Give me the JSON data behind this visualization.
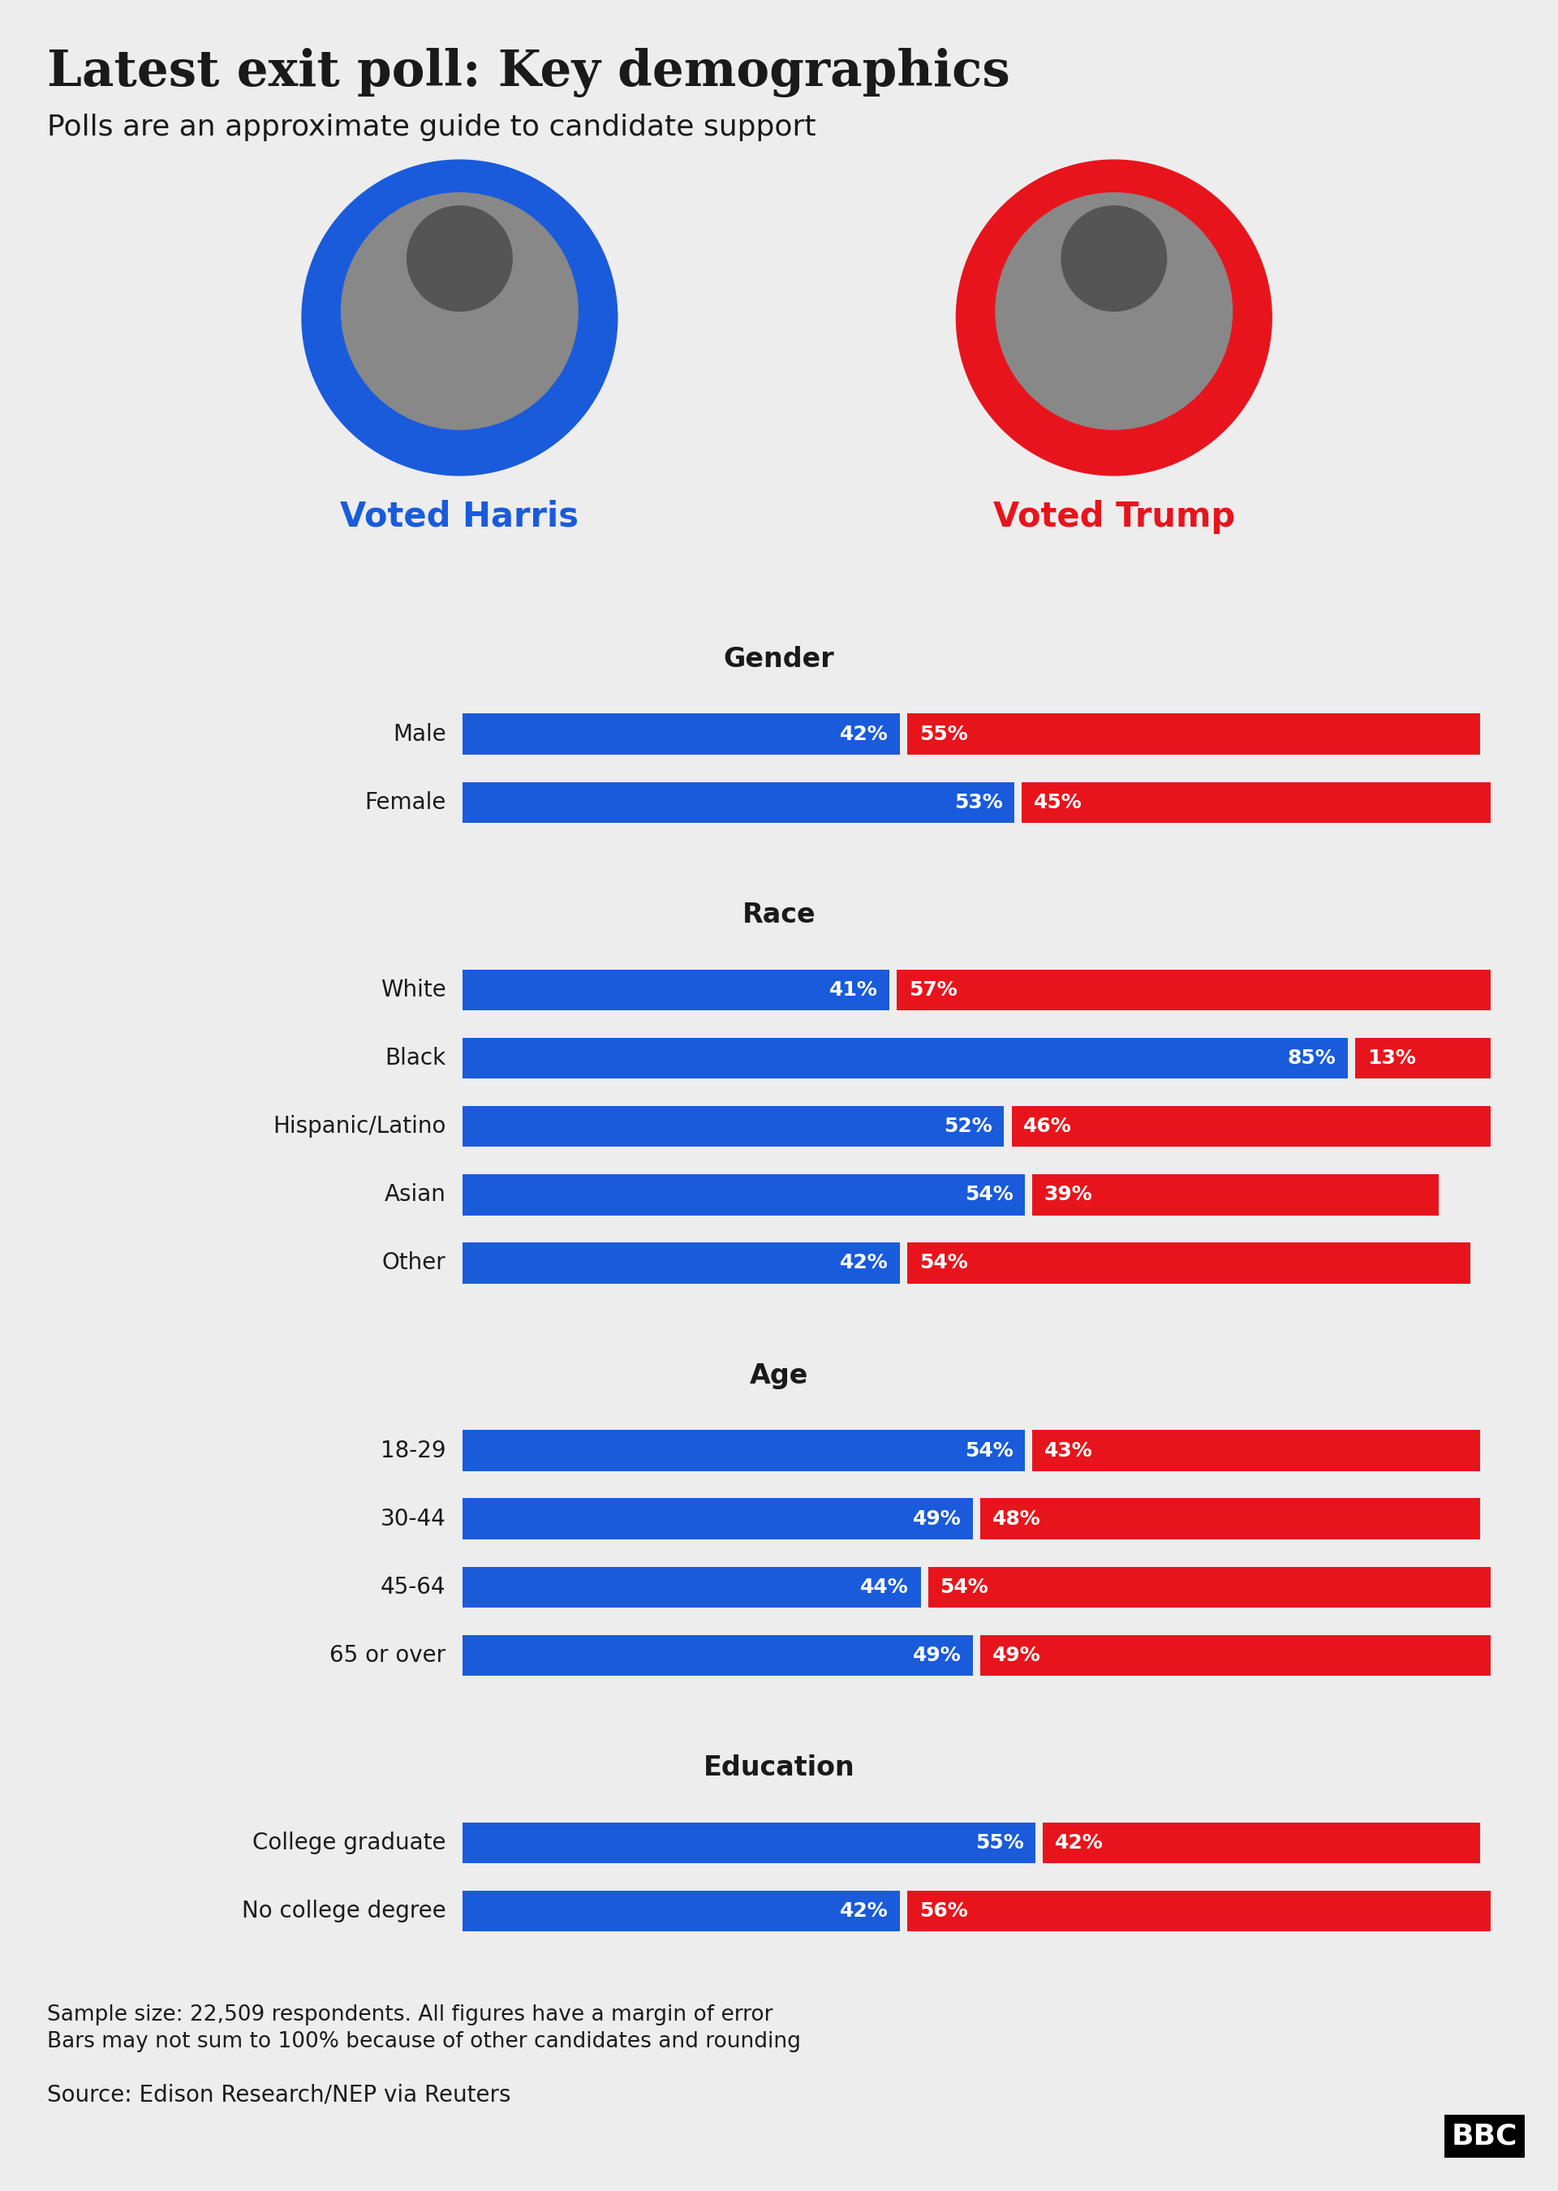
{
  "title": "Latest exit poll: Key demographics",
  "subtitle": "Polls are an approximate guide to candidate support",
  "harris_label": "Voted Harris",
  "trump_label": "Voted Trump",
  "harris_color": "#1a5bdb",
  "trump_color": "#e8141c",
  "background_color": "#ededee",
  "categories": [
    {
      "section": "Gender",
      "label": "Male",
      "harris": 42,
      "trump": 55
    },
    {
      "section": "Gender",
      "label": "Female",
      "harris": 53,
      "trump": 45
    },
    {
      "section": "Race",
      "label": "White",
      "harris": 41,
      "trump": 57
    },
    {
      "section": "Race",
      "label": "Black",
      "harris": 85,
      "trump": 13
    },
    {
      "section": "Race",
      "label": "Hispanic/Latino",
      "harris": 52,
      "trump": 46
    },
    {
      "section": "Race",
      "label": "Asian",
      "harris": 54,
      "trump": 39
    },
    {
      "section": "Race",
      "label": "Other",
      "harris": 42,
      "trump": 54
    },
    {
      "section": "Age",
      "label": "18-29",
      "harris": 54,
      "trump": 43
    },
    {
      "section": "Age",
      "label": "30-44",
      "harris": 49,
      "trump": 48
    },
    {
      "section": "Age",
      "label": "45-64",
      "harris": 44,
      "trump": 54
    },
    {
      "section": "Age",
      "label": "65 or over",
      "harris": 49,
      "trump": 49
    },
    {
      "section": "Education",
      "label": "College graduate",
      "harris": 55,
      "trump": 42
    },
    {
      "section": "Education",
      "label": "No college degree",
      "harris": 42,
      "trump": 56
    }
  ],
  "sections_order": [
    "Gender",
    "Race",
    "Age",
    "Education"
  ],
  "footer_note1": "Sample size: 22,509 respondents. All figures have a margin of error",
  "footer_note2": "Bars may not sum to 100% because of other candidates and rounding",
  "source": "Source: Edison Research/NEP via Reuters",
  "bbc_text": "BBC",
  "label_fontsize": 20,
  "section_fontsize": 24,
  "pct_fontsize": 18,
  "title_fontsize": 44,
  "subtitle_fontsize": 26,
  "candidate_label_fontsize": 30,
  "footer_fontsize": 19,
  "source_fontsize": 20
}
